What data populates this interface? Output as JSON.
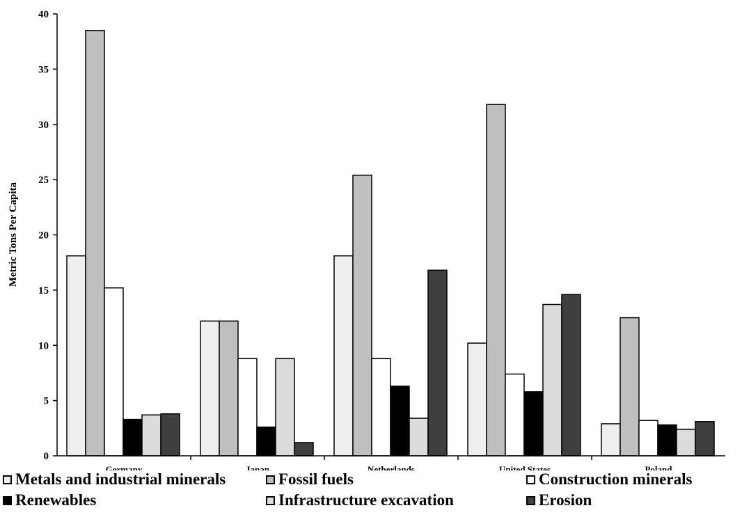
{
  "chart_data": {
    "type": "bar",
    "title": "",
    "xlabel": "",
    "ylabel": "Metric Tons Per Capita",
    "ylim": [
      0,
      40
    ],
    "yticks": [
      0,
      5,
      10,
      15,
      20,
      25,
      30,
      35,
      40
    ],
    "grid": false,
    "legend_position": "bottom",
    "categories": [
      "Germany",
      "Japan",
      "Netherlands",
      "United States",
      "Poland"
    ],
    "series": [
      {
        "name": "Metals and industrial minerals",
        "color": "#efefef",
        "values": [
          18.1,
          12.2,
          18.1,
          10.2,
          2.9
        ]
      },
      {
        "name": "Fossil fuels",
        "color": "#bfbfbf",
        "values": [
          38.5,
          12.2,
          25.4,
          31.8,
          12.5
        ]
      },
      {
        "name": "Construction minerals",
        "color": "#ffffff",
        "values": [
          15.2,
          8.8,
          8.8,
          7.4,
          3.2
        ]
      },
      {
        "name": "Renewables",
        "color": "#000000",
        "values": [
          3.3,
          2.6,
          6.3,
          5.8,
          2.8
        ]
      },
      {
        "name": "Infrastructure excavation",
        "color": "#dcdcdc",
        "values": [
          3.7,
          8.8,
          3.4,
          13.7,
          2.4
        ]
      },
      {
        "name": "Erosion",
        "color": "#404040",
        "values": [
          3.8,
          1.2,
          16.8,
          14.6,
          3.1
        ]
      }
    ]
  }
}
